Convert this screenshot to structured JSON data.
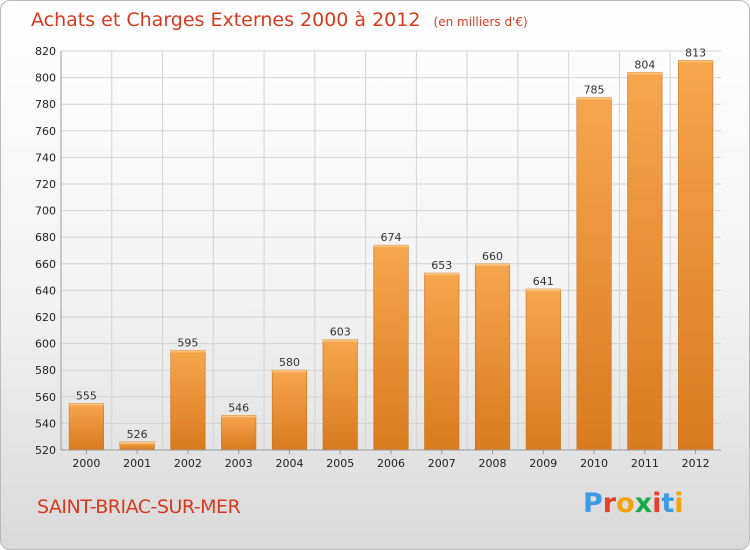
{
  "header": {
    "title": "Achats et Charges Externes 2000 à 2012",
    "unit": "(en milliers d'€)"
  },
  "footer": {
    "commune": "SAINT-BRIAC-SUR-MER",
    "logo": "Proxiti",
    "logo_colors": [
      "#3b9be8",
      "#e8402a",
      "#f2a20e",
      "#1aa84b",
      "#e8402a",
      "#3b9be8",
      "#f2a20e"
    ]
  },
  "colors": {
    "bar_light": "#f6a64e",
    "bar_dark": "#d97a1e",
    "grid": "#d4d4d4",
    "title": "#d63a1f"
  },
  "chart_data": {
    "type": "bar",
    "categories": [
      "2000",
      "2001",
      "2002",
      "2003",
      "2004",
      "2005",
      "2006",
      "2007",
      "2008",
      "2009",
      "2010",
      "2011",
      "2012"
    ],
    "values": [
      555,
      526,
      595,
      546,
      580,
      603,
      674,
      653,
      660,
      641,
      785,
      804,
      813
    ],
    "data_labels": [
      "555",
      "526",
      "595",
      "546",
      "580",
      "603",
      "674",
      "653",
      "660",
      "641",
      "785",
      "804",
      "813"
    ],
    "ylim": [
      520,
      820
    ],
    "yticks": [
      520,
      540,
      560,
      580,
      600,
      620,
      640,
      660,
      680,
      700,
      720,
      740,
      760,
      780,
      800,
      820
    ],
    "grid": true,
    "legend": false
  }
}
